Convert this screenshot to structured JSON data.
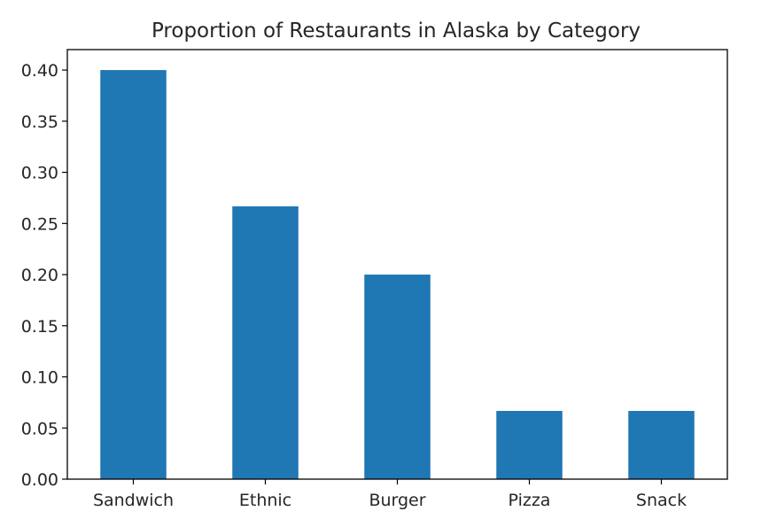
{
  "chart_data": {
    "type": "bar",
    "title": "Proportion of Restaurants in Alaska by Category",
    "xlabel": "",
    "ylabel": "",
    "categories": [
      "Sandwich",
      "Ethnic",
      "Burger",
      "Pizza",
      "Snack"
    ],
    "values": [
      0.4,
      0.2667,
      0.2,
      0.0667,
      0.0667
    ],
    "ylim": [
      0,
      0.42
    ],
    "yticks": [
      "0.00",
      "0.05",
      "0.10",
      "0.15",
      "0.20",
      "0.25",
      "0.30",
      "0.35",
      "0.40"
    ],
    "grid": false,
    "legend": "none",
    "bar_color": "#1f77b4"
  }
}
